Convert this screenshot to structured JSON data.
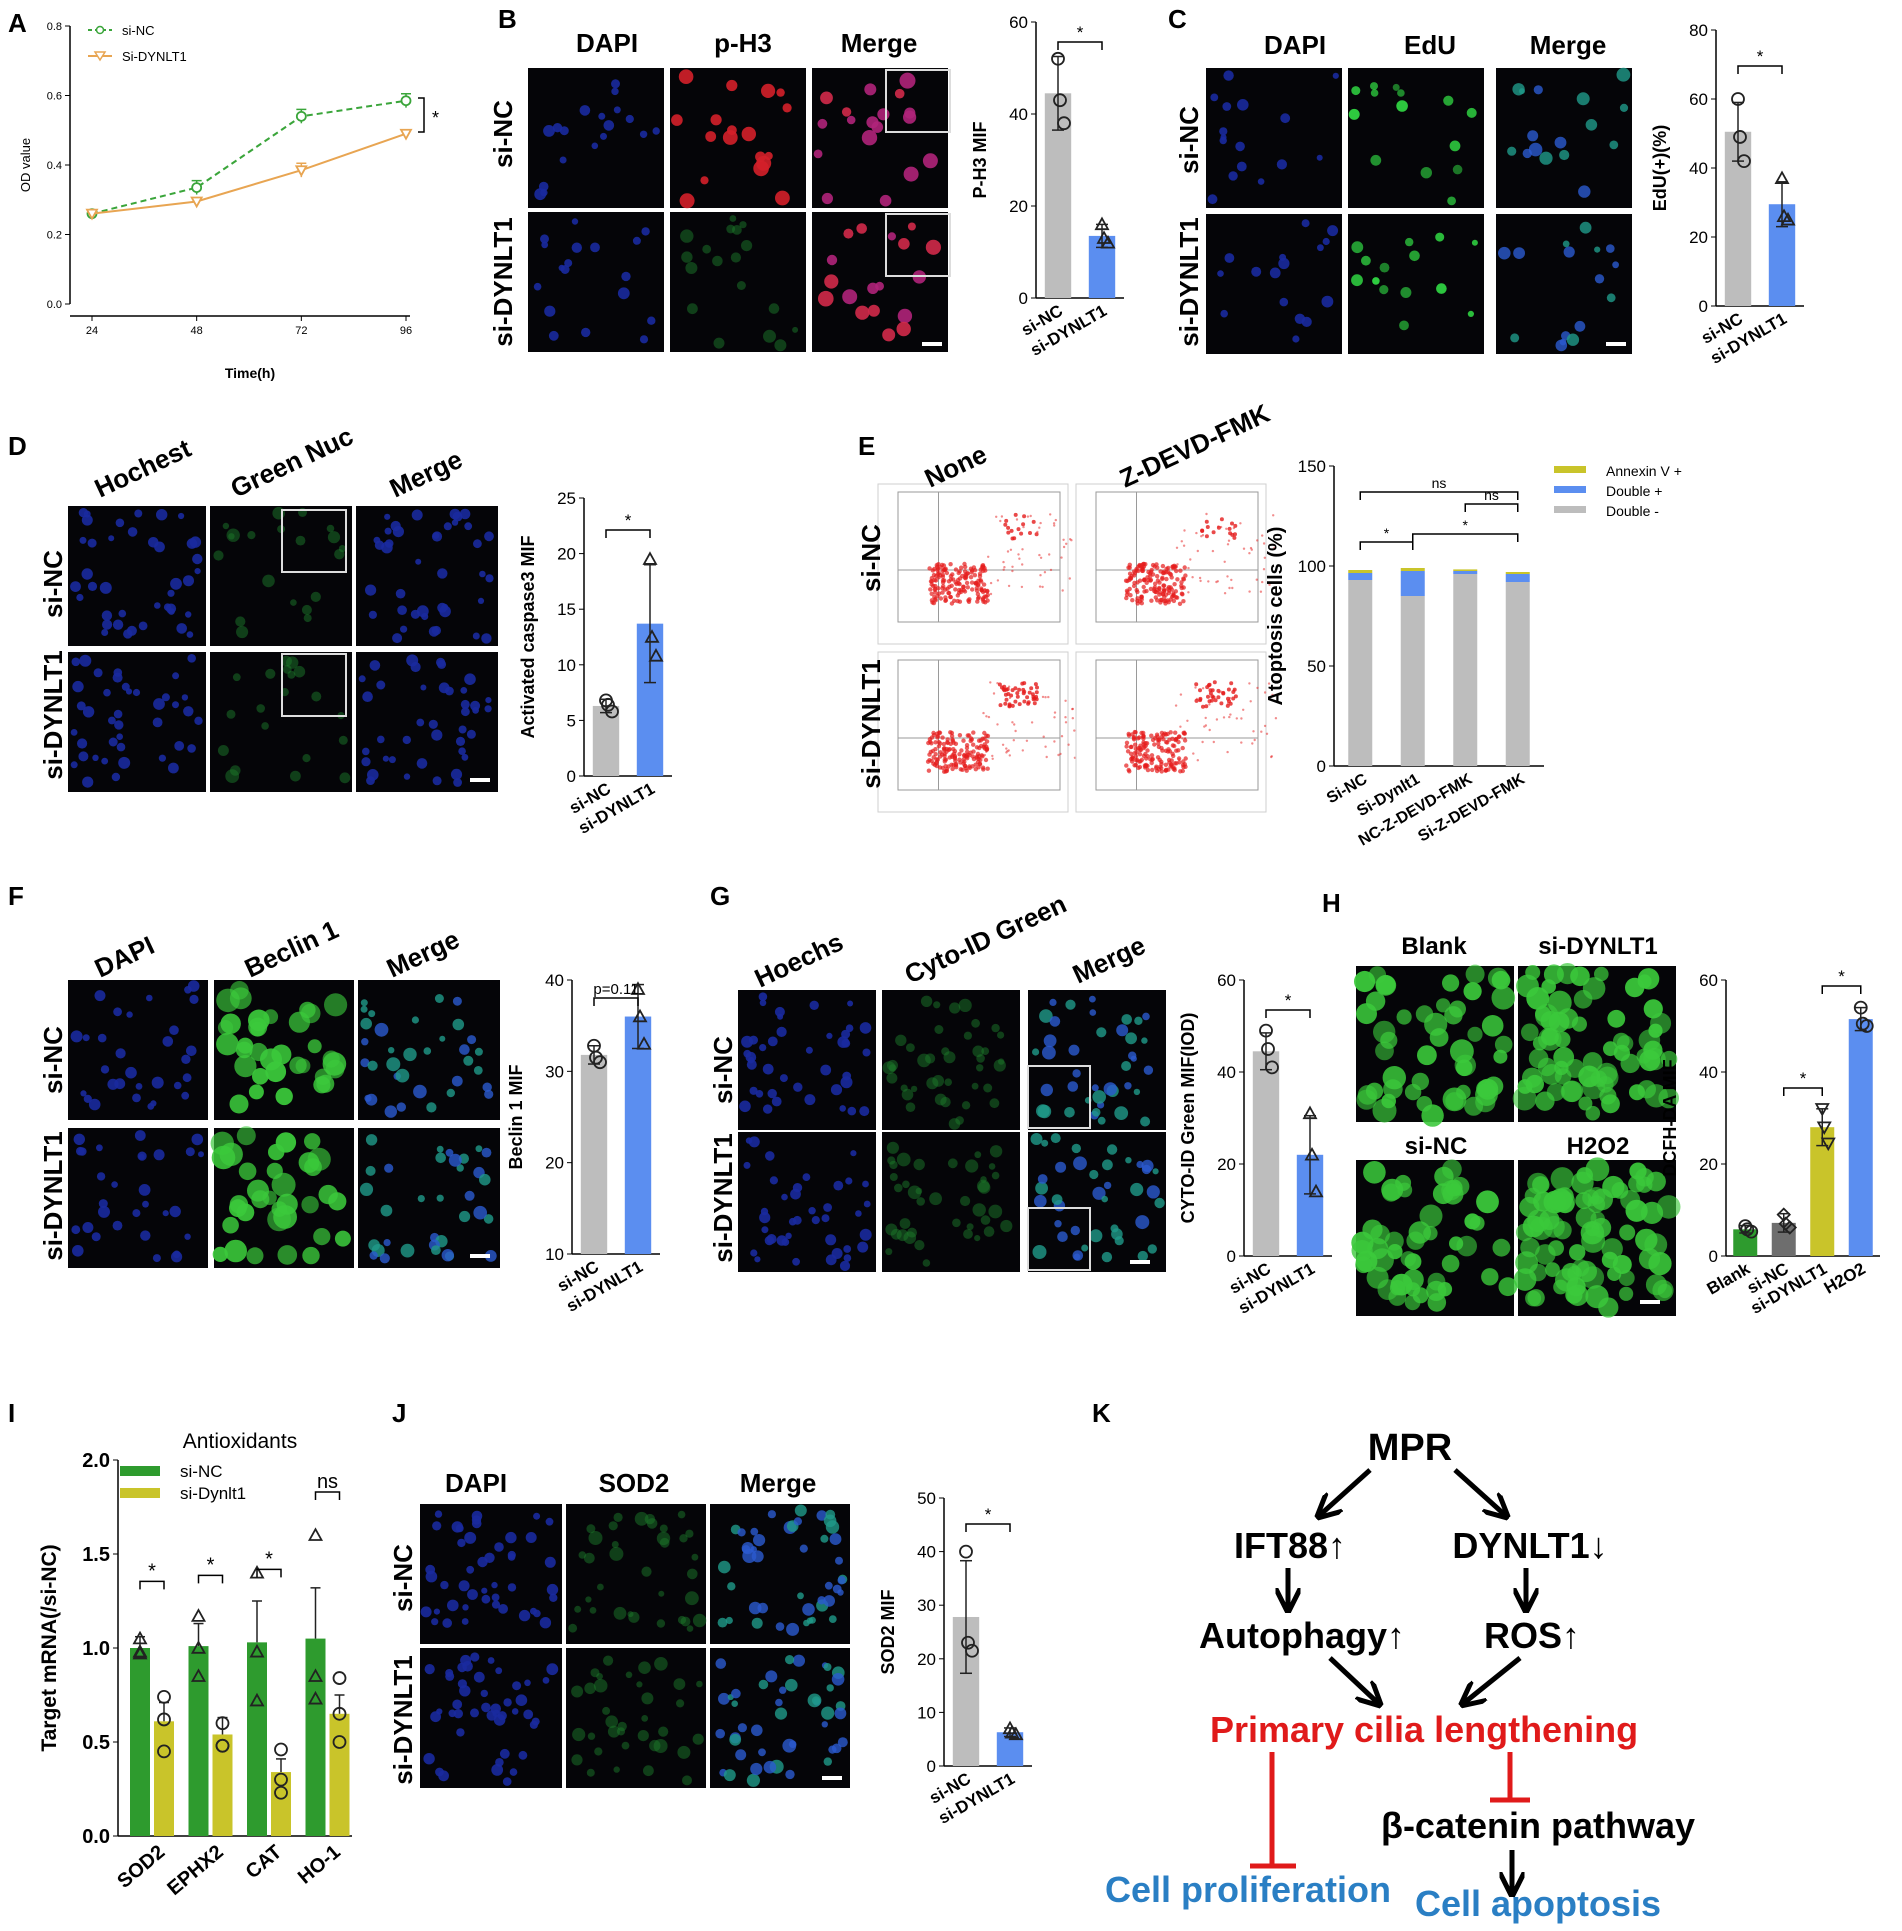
{
  "panel_letters": [
    "A",
    "B",
    "C",
    "D",
    "E",
    "F",
    "G",
    "H",
    "I",
    "J",
    "K"
  ],
  "colors": {
    "green_dashed": "#3aa53a",
    "orange_line": "#e8a552",
    "bar_gray": "#bdbdbd",
    "bar_blue": "#5b8ef0",
    "bar_green": "#2e9b2e",
    "bar_yellow": "#c9c42a",
    "bar_dark_gray": "#6e6e6e",
    "red_text": "#e01a1a",
    "blue_text": "#2a7fc4",
    "dapi_blue": "#1a2a9e",
    "signal_red": "#d4202a",
    "signal_green": "#2ecc40",
    "flow_red": "#e51c1c"
  },
  "panel_a": {
    "ylabel": "OD value",
    "xlabel": "Time(h)",
    "legend": [
      "si-NC",
      "Si-DYNLT1"
    ],
    "sig": "*"
  },
  "panel_b": {
    "cols": [
      "DAPI",
      "p-H3",
      "Merge"
    ],
    "rows": [
      "si-NC",
      "si-DYNLT1"
    ],
    "ylabel": "P-H3 MIF",
    "cats": [
      "si-NC",
      "si-DYNLT1"
    ],
    "sig": "*"
  },
  "panel_c": {
    "cols": [
      "DAPI",
      "EdU",
      "Merge"
    ],
    "rows": [
      "si-NC",
      "si-DYNLT1"
    ],
    "ylabel": "EdU(+)(%)",
    "cats": [
      "si-NC",
      "si-DYNLT1"
    ],
    "sig": "*"
  },
  "panel_d": {
    "cols": [
      "Hochest",
      "Green Nuc",
      "Merge"
    ],
    "rows": [
      "si-NC",
      "si-DYNLT1"
    ],
    "ylabel": "Activated caspase3 MIF",
    "cats": [
      "si-NC",
      "si-DYNLT1"
    ],
    "sig": "*"
  },
  "panel_e": {
    "cols": [
      "None",
      "Z-DEVD-FMK"
    ],
    "rows": [
      "si-NC",
      "si-DYNLT1"
    ],
    "ylabel": "Atoptosis cells (%)",
    "cats": [
      "Si-NC",
      "Si-Dynlt1",
      "NC-Z-DEVD-FMK",
      "Si-Z-DEVD-FMK"
    ],
    "legend": [
      "Annexin V +",
      "Double +",
      "Double -"
    ],
    "sigs": [
      "ns",
      "ns",
      "*",
      "*"
    ]
  },
  "panel_f": {
    "cols": [
      "DAPI",
      "Beclin 1",
      "Merge"
    ],
    "rows": [
      "si-NC",
      "si-DYNLT1"
    ],
    "ylabel": "Beclin 1 MIF",
    "cats": [
      "si-NC",
      "si-DYNLT1"
    ],
    "pval": "p=0.11"
  },
  "panel_g": {
    "cols": [
      "Hoechs",
      "Cyto-ID Green",
      "Merge"
    ],
    "rows": [
      "si-NC",
      "si-DYNLT1"
    ],
    "ylabel": "CYTO-ID Green MIF(IOD)",
    "cats": [
      "si-NC",
      "si-DYNLT1"
    ],
    "sig": "*"
  },
  "panel_h": {
    "tiles": [
      "Blank",
      "si-DYNLT1",
      "si-NC",
      "H2O2"
    ],
    "ylabel": "DCFH-DA MIF",
    "cats": [
      "Blank",
      "si-NC",
      "si-DYNLT1",
      "H2O2"
    ],
    "sigs": [
      "*",
      "*"
    ]
  },
  "panel_i": {
    "title": "Antioxidants",
    "ylabel": "Target mRNA(/si-NC)",
    "cats": [
      "SOD2",
      "EPHX2",
      "CAT",
      "HO-1"
    ],
    "legend": [
      "si-NC",
      "si-Dynlt1"
    ],
    "sigs": [
      "*",
      "*",
      "*",
      "ns"
    ]
  },
  "panel_j": {
    "cols": [
      "DAPI",
      "SOD2",
      "Merge"
    ],
    "rows": [
      "si-NC",
      "si-DYNLT1"
    ],
    "ylabel": "SOD2 MIF",
    "cats": [
      "si-NC",
      "si-DYNLT1"
    ],
    "sig": "*"
  },
  "panel_k": {
    "mpr": "MPR",
    "ift88": "IFT88↑",
    "dynlt1": "DYNLT1↓",
    "autophagy": "Autophagy↑",
    "ros": "ROS↑",
    "cilia": "Primary cilia lengthening",
    "catenin": "β-catenin pathway",
    "prolif": "Cell proliferation",
    "apoptosis": "Cell apoptosis"
  },
  "chart_data": [
    {
      "id": "A",
      "type": "line",
      "xlabel": "Time(h)",
      "ylabel": "OD value",
      "x": [
        24,
        48,
        72,
        96
      ],
      "ylim": [
        0.0,
        0.8
      ],
      "yticks": [
        0.0,
        0.2,
        0.4,
        0.6,
        0.8
      ],
      "series": [
        {
          "name": "si-NC",
          "values": [
            0.26,
            0.335,
            0.54,
            0.585
          ],
          "err": [
            0.01,
            0.02,
            0.02,
            0.02
          ]
        },
        {
          "name": "Si-DYNLT1",
          "values": [
            0.26,
            0.295,
            0.385,
            0.49
          ],
          "err": [
            0.005,
            0.01,
            0.02,
            0.01
          ]
        }
      ]
    },
    {
      "id": "B",
      "type": "bar",
      "ylabel": "P-H3 MIF",
      "categories": [
        "si-NC",
        "si-DYNLT1"
      ],
      "values": [
        44.5,
        13.5
      ],
      "err": [
        8,
        2.5
      ],
      "ylim": [
        0,
        60
      ],
      "yticks": [
        0,
        20,
        40,
        60
      ],
      "points": [
        [
          52,
          43,
          38
        ],
        [
          16,
          13,
          12
        ]
      ]
    },
    {
      "id": "C",
      "type": "bar",
      "ylabel": "EdU(+)(%)",
      "categories": [
        "si-NC",
        "si-DYNLT1"
      ],
      "values": [
        50.5,
        29.5
      ],
      "err": [
        8.5,
        6.5
      ],
      "ylim": [
        0,
        80
      ],
      "yticks": [
        0,
        20,
        40,
        60,
        80
      ],
      "points": [
        [
          60,
          49,
          42
        ],
        [
          37,
          26,
          25
        ]
      ]
    },
    {
      "id": "D",
      "type": "bar",
      "ylabel": "Activated caspase3 MIF",
      "categories": [
        "si-NC",
        "si-DYNLT1"
      ],
      "values": [
        6.3,
        13.7
      ],
      "err": [
        0.6,
        5.3
      ],
      "ylim": [
        0,
        25
      ],
      "yticks": [
        0,
        5,
        10,
        15,
        20,
        25
      ],
      "points": [
        [
          6.8,
          6.4,
          5.8
        ],
        [
          19.5,
          12.5,
          10.8
        ]
      ]
    },
    {
      "id": "E",
      "type": "bar",
      "stacked": true,
      "ylabel": "Atoptosis cells (%)",
      "categories": [
        "Si-NC",
        "Si-Dynlt1",
        "NC-Z-DEVD-FMK",
        "Si-Z-DEVD-FMK"
      ],
      "series": [
        {
          "name": "Double -",
          "values": [
            93,
            85,
            96,
            92
          ]
        },
        {
          "name": "Double +",
          "values": [
            3.5,
            12.5,
            1.5,
            4
          ]
        },
        {
          "name": "Annexin V +",
          "values": [
            1.5,
            1.5,
            0.8,
            1
          ]
        }
      ],
      "ylim": [
        0,
        150
      ],
      "yticks": [
        0,
        50,
        100,
        150
      ]
    },
    {
      "id": "F",
      "type": "bar",
      "ylabel": "Beclin 1 MIF",
      "categories": [
        "si-NC",
        "si-DYNLT1"
      ],
      "values": [
        31.8,
        36
      ],
      "err": [
        1,
        3.5
      ],
      "ylim": [
        10,
        40
      ],
      "yticks": [
        10,
        20,
        30,
        40
      ],
      "points": [
        [
          32.8,
          31.5,
          31
        ],
        [
          39,
          36,
          33
        ]
      ]
    },
    {
      "id": "G",
      "type": "bar",
      "ylabel": "CYTO-ID Green MIF(IOD)",
      "categories": [
        "si-NC",
        "si-DYNLT1"
      ],
      "values": [
        44.5,
        22
      ],
      "err": [
        4,
        8.5
      ],
      "ylim": [
        0,
        60
      ],
      "yticks": [
        0,
        20,
        40,
        60
      ],
      "points": [
        [
          49,
          45,
          41
        ],
        [
          31,
          22,
          14
        ]
      ]
    },
    {
      "id": "H",
      "type": "bar",
      "ylabel": "DCFH-DA MIF",
      "categories": [
        "Blank",
        "si-NC",
        "si-DYNLT1",
        "H2O2"
      ],
      "values": [
        5.8,
        7.2,
        28,
        51.5
      ],
      "err": [
        0.8,
        2,
        4,
        2.5
      ],
      "ylim": [
        0,
        60
      ],
      "yticks": [
        0,
        20,
        40,
        60
      ],
      "points": [
        [
          6.5,
          5.8,
          5.3
        ],
        [
          9,
          7,
          6.2
        ],
        [
          32,
          28,
          24.5
        ],
        [
          54,
          50.5,
          50
        ]
      ]
    },
    {
      "id": "I",
      "type": "bar",
      "title": "Antioxidants",
      "ylabel": "Target mRNA(/si-NC)",
      "categories": [
        "SOD2",
        "EPHX2",
        "CAT",
        "HO-1"
      ],
      "series": [
        {
          "name": "si-NC",
          "values": [
            1.0,
            1.01,
            1.03,
            1.05
          ],
          "err": [
            0.06,
            0.12,
            0.22,
            0.27
          ],
          "points": [
            [
              1.05,
              0.98,
              0.97
            ],
            [
              1.17,
              1.0,
              0.85
            ],
            [
              1.4,
              0.98,
              0.72
            ],
            [
              1.6,
              0.85,
              0.73
            ]
          ]
        },
        {
          "name": "si-Dynlt1",
          "values": [
            0.61,
            0.54,
            0.34,
            0.65
          ],
          "err": [
            0.1,
            0.09,
            0.07,
            0.1
          ],
          "points": [
            [
              0.74,
              0.62,
              0.45
            ],
            [
              0.6,
              0.48,
              0.48
            ],
            [
              0.46,
              0.3,
              0.23
            ],
            [
              0.84,
              0.65,
              0.5
            ]
          ]
        }
      ],
      "ylim": [
        0,
        2.0
      ],
      "yticks": [
        0.0,
        0.5,
        1.0,
        1.5,
        2.0
      ]
    },
    {
      "id": "J",
      "type": "bar",
      "ylabel": "SOD2 MIF",
      "categories": [
        "si-NC",
        "si-DYNLT1"
      ],
      "values": [
        27.8,
        6.3
      ],
      "err": [
        10.5,
        0.8
      ],
      "ylim": [
        0,
        50
      ],
      "yticks": [
        0,
        10,
        20,
        30,
        40,
        50
      ],
      "points": [
        [
          40,
          23,
          21.5
        ],
        [
          7,
          6.2,
          5.9
        ]
      ]
    }
  ]
}
